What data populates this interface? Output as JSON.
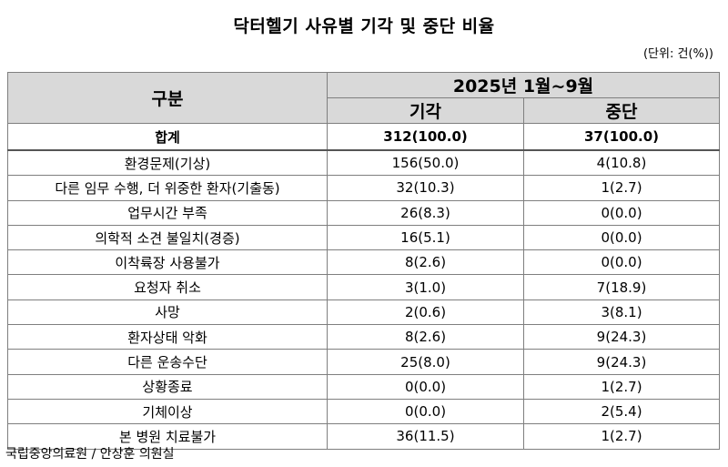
{
  "title": "닥터헬기 사유별 기각 및 중단 비율",
  "unit": "(단위: 건(%))",
  "table": {
    "header": {
      "category": "구분",
      "period": "2025년 1월~9월",
      "col_rejected": "기각",
      "col_stopped": "중단"
    },
    "total": {
      "label": "합계",
      "rejected": "312(100.0)",
      "stopped": "37(100.0)"
    },
    "rows": [
      {
        "label": "환경문제(기상)",
        "rejected": "156(50.0)",
        "stopped": "4(10.8)"
      },
      {
        "label": "다른 임무 수행, 더 위중한 환자(기출동)",
        "rejected": "32(10.3)",
        "stopped": "1(2.7)"
      },
      {
        "label": "업무시간 부족",
        "rejected": "26(8.3)",
        "stopped": "0(0.0)"
      },
      {
        "label": "의학적 소견 불일치(경증)",
        "rejected": "16(5.1)",
        "stopped": "0(0.0)"
      },
      {
        "label": "이착륙장 사용불가",
        "rejected": "8(2.6)",
        "stopped": "0(0.0)"
      },
      {
        "label": "요청자 취소",
        "rejected": "3(1.0)",
        "stopped": "7(18.9)"
      },
      {
        "label": "사망",
        "rejected": "2(0.6)",
        "stopped": "3(8.1)"
      },
      {
        "label": "환자상태 악화",
        "rejected": "8(2.6)",
        "stopped": "9(24.3)"
      },
      {
        "label": "다른 운송수단",
        "rejected": "25(8.0)",
        "stopped": "9(24.3)"
      },
      {
        "label": "상황종료",
        "rejected": "0(0.0)",
        "stopped": "1(2.7)"
      },
      {
        "label": "기체이상",
        "rejected": "0(0.0)",
        "stopped": "2(5.4)"
      },
      {
        "label": "본 병원 치료불가",
        "rejected": "36(11.5)",
        "stopped": "1(2.7)"
      }
    ]
  },
  "source": "국립중앙의료원 / 안상훈 의원실"
}
